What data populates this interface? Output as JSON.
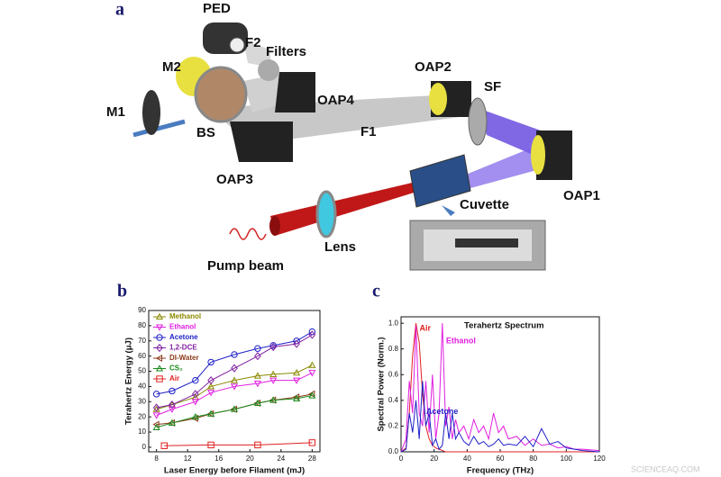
{
  "panel_labels": [
    "a",
    "b",
    "c"
  ],
  "diagram": {
    "labels": [
      "PED",
      "F2",
      "Filters",
      "M2",
      "M1",
      "BS",
      "OAP4",
      "OAP2",
      "SF",
      "F1",
      "OAP3",
      "OAP1",
      "Cuvette",
      "Lens",
      "Pump beam"
    ]
  },
  "watermark": "SCIENCEAQ.COM",
  "chart_data": [
    {
      "type": "line",
      "xlabel": "Laser Energy before Filament (mJ)",
      "ylabel": "Terahertz Energy (μJ)",
      "x": [
        8,
        10,
        13,
        15,
        18,
        21,
        23,
        26,
        28
      ],
      "xlim": [
        7,
        29
      ],
      "xticks": [
        8,
        12,
        16,
        20,
        24,
        28
      ],
      "ylim": [
        -3,
        90
      ],
      "yticks": [
        0,
        10,
        20,
        30,
        40,
        50,
        60,
        70,
        80,
        90
      ],
      "legend": "upper left",
      "series": [
        {
          "name": "Methanol",
          "color": "#8a8a00",
          "marker": "triangle",
          "values": [
            25,
            28,
            33,
            40,
            44,
            47,
            48,
            49,
            54
          ]
        },
        {
          "name": "Ethanol",
          "color": "#e020e0",
          "marker": "triangle-down",
          "values": [
            21,
            25,
            30,
            36,
            40,
            42,
            44,
            44,
            49
          ]
        },
        {
          "name": "Acetone",
          "color": "#1f1fc8",
          "marker": "circle",
          "values": [
            35,
            37,
            44,
            56,
            61,
            65,
            67,
            70,
            76
          ]
        },
        {
          "name": "1,2-DCE",
          "color": "#8020a0",
          "marker": "diamond",
          "values": [
            26,
            28,
            35,
            44,
            52,
            60,
            66,
            68,
            74
          ]
        },
        {
          "name": "DI-Water",
          "color": "#8b3a1a",
          "marker": "triangle-left",
          "values": [
            15,
            16,
            19,
            22,
            25,
            29,
            31,
            33,
            35
          ]
        },
        {
          "name": "CS₂",
          "color": "#1a8a1a",
          "marker": "triangle",
          "values": [
            13,
            16,
            20,
            22,
            25,
            29,
            31,
            32,
            34
          ]
        },
        {
          "name": "Air",
          "color": "#e02020",
          "marker": "square",
          "x": [
            9,
            15,
            21,
            28
          ],
          "values": [
            1,
            1.5,
            1.5,
            3
          ]
        }
      ]
    },
    {
      "type": "line",
      "title": "Terahertz Spectrum",
      "xlabel": "Frequency (THz)",
      "ylabel": "Spectral Power (Norm.)",
      "x": [
        0,
        3,
        5,
        7,
        9,
        11,
        13,
        15,
        17,
        19,
        21,
        23,
        25,
        27,
        29,
        31,
        33,
        35,
        38,
        41,
        44,
        47,
        50,
        53,
        56,
        59,
        62,
        65,
        70,
        75,
        80,
        85,
        90,
        95,
        100,
        105,
        110,
        120
      ],
      "xlim": [
        0,
        120
      ],
      "xticks": [
        0,
        20,
        40,
        60,
        80,
        100,
        120
      ],
      "ylim": [
        0,
        1.05
      ],
      "yticks": [
        {
          "value": 0,
          "label": "0.0"
        },
        0.2,
        0.4,
        0.6,
        0.8,
        {
          "value": 1,
          "label": "1.0"
        }
      ],
      "legend": "inline",
      "series": [
        {
          "name": "Air",
          "color": "#e02020",
          "values": [
            0,
            0.03,
            0.3,
            0.75,
            1.0,
            0.85,
            0.45,
            0.2,
            0.1,
            0.05,
            0.03,
            0.02,
            0.01,
            0,
            0,
            0,
            0,
            0,
            0,
            0,
            0,
            0,
            0,
            0,
            0,
            0,
            0,
            0,
            0,
            0,
            0,
            0,
            0,
            0,
            0,
            0,
            0,
            0
          ]
        },
        {
          "name": "Ethanol",
          "color": "#e020e0",
          "values": [
            0,
            0.1,
            0.55,
            0.3,
            0.98,
            0.3,
            0.2,
            0.55,
            0.15,
            0.6,
            0.1,
            0.3,
            1.0,
            0.2,
            0.35,
            0.1,
            0.25,
            0.15,
            0.2,
            0.1,
            0.25,
            0.15,
            0.2,
            0.1,
            0.3,
            0.15,
            0.2,
            0.1,
            0.12,
            0.05,
            0.1,
            0.05,
            0.06,
            0.03,
            0.04,
            0.02,
            0.02,
            0.01
          ]
        },
        {
          "name": "Acetone",
          "color": "#1f1fc8",
          "values": [
            0,
            0.02,
            0.3,
            0.15,
            0.4,
            0.1,
            0.55,
            0.2,
            0.3,
            0.05,
            0.1,
            0.02,
            0.05,
            0.3,
            0.1,
            0.3,
            0.1,
            0.15,
            0.08,
            0.05,
            0.12,
            0.06,
            0.08,
            0.04,
            0.06,
            0.1,
            0.05,
            0.06,
            0.05,
            0.12,
            0.04,
            0.18,
            0.06,
            0.08,
            0.03,
            0.02,
            0.01,
            0
          ]
        }
      ]
    }
  ]
}
